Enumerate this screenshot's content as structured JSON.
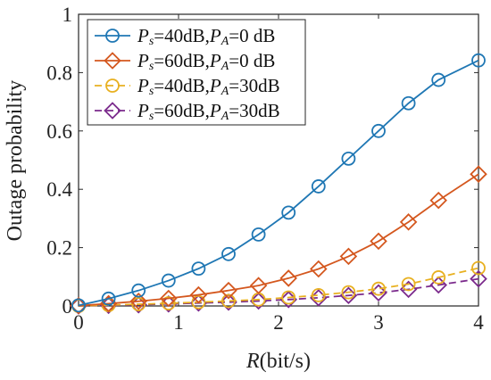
{
  "chart_data": {
    "type": "line",
    "title": "",
    "xlabel": {
      "var": "R",
      "rest": "(bit/s)"
    },
    "ylabel": "Outage probability",
    "xlim": [
      0,
      4
    ],
    "ylim": [
      0,
      1
    ],
    "xticks": [
      "0",
      "1",
      "2",
      "3",
      "4"
    ],
    "yticks": [
      "0",
      "0.2",
      "0.4",
      "0.6",
      "0.8",
      "1"
    ],
    "grid": false,
    "legend_position": "top-left",
    "x": [
      0,
      0.3,
      0.6,
      0.9,
      1.2,
      1.5,
      1.8,
      2.1,
      2.4,
      2.7,
      3.0,
      3.3,
      3.6,
      4.0
    ],
    "series": [
      {
        "label": {
          "p1": "P",
          "s1": "s",
          "t1": "=40dB,",
          "p2": "P",
          "s2": "A",
          "t2": "=0  dB"
        },
        "color": "#1f77b4",
        "marker": "circle",
        "dash": "solid",
        "values": [
          0.002,
          0.025,
          0.053,
          0.087,
          0.128,
          0.178,
          0.245,
          0.32,
          0.41,
          0.505,
          0.6,
          0.695,
          0.775,
          0.842
        ]
      },
      {
        "label": {
          "p1": "P",
          "s1": "s",
          "t1": "=60dB,",
          "p2": "P",
          "s2": "A",
          "t2": "=0  dB"
        },
        "color": "#d4571e",
        "marker": "diamond",
        "dash": "solid",
        "values": [
          0.001,
          0.008,
          0.016,
          0.026,
          0.038,
          0.053,
          0.07,
          0.095,
          0.127,
          0.17,
          0.222,
          0.288,
          0.362,
          0.452
        ]
      },
      {
        "label": {
          "p1": "P",
          "s1": "s",
          "t1": "=40dB,",
          "p2": "P",
          "s2": "A",
          "t2": "=30dB"
        },
        "color": "#e8b020",
        "marker": "circle",
        "dash": "dashed",
        "values": [
          0.0,
          0.003,
          0.006,
          0.009,
          0.013,
          0.017,
          0.022,
          0.029,
          0.037,
          0.047,
          0.059,
          0.075,
          0.098,
          0.13
        ]
      },
      {
        "label": {
          "p1": "P",
          "s1": "s",
          "t1": "=60dB,",
          "p2": "P",
          "s2": "A",
          "t2": "=30dB"
        },
        "color": "#7b2a8c",
        "marker": "diamond",
        "dash": "dashed",
        "values": [
          0.0,
          0.002,
          0.004,
          0.007,
          0.01,
          0.013,
          0.017,
          0.022,
          0.028,
          0.036,
          0.045,
          0.057,
          0.072,
          0.093
        ]
      }
    ]
  }
}
